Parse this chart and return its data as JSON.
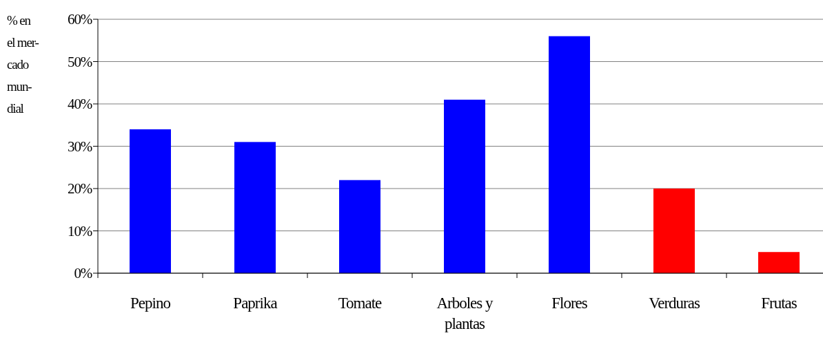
{
  "chart_data": {
    "type": "bar",
    "ylabel": "% en el mer- cado mun- dial",
    "categories": [
      "Pepino",
      "Paprika",
      "Tomate",
      "Arboles y plantas",
      "Flores",
      "Verduras",
      "Frutas"
    ],
    "values": [
      34,
      31,
      22,
      41,
      56,
      20,
      5
    ],
    "colors": [
      "#0000ff",
      "#0000ff",
      "#0000ff",
      "#0000ff",
      "#0000ff",
      "#ff0000",
      "#ff0000"
    ],
    "ylim": [
      0,
      60
    ],
    "yticks": [
      {
        "value": 0,
        "label": "0%"
      },
      {
        "value": 10,
        "label": "10%"
      },
      {
        "value": 20,
        "label": "20%"
      },
      {
        "value": 30,
        "label": "30%"
      },
      {
        "value": 40,
        "label": "40%"
      },
      {
        "value": 50,
        "label": "50%"
      },
      {
        "value": 60,
        "label": "60%"
      }
    ],
    "grid": "y"
  }
}
